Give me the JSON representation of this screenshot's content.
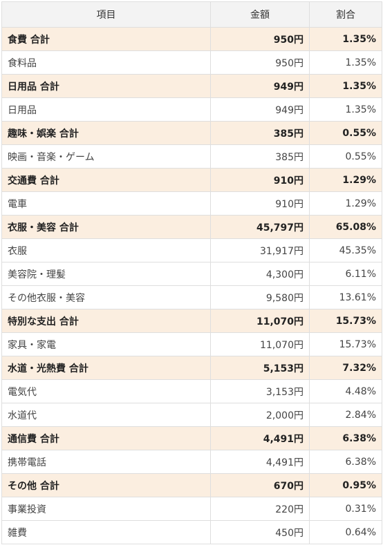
{
  "table": {
    "headers": {
      "item": "項目",
      "amount": "金額",
      "ratio": "割合"
    },
    "rows": [
      {
        "type": "total",
        "item": "食費 合計",
        "amount": "950円",
        "ratio": "1.35%"
      },
      {
        "type": "item",
        "item": "食料品",
        "amount": "950円",
        "ratio": "1.35%"
      },
      {
        "type": "total",
        "item": "日用品 合計",
        "amount": "949円",
        "ratio": "1.35%"
      },
      {
        "type": "item",
        "item": "日用品",
        "amount": "949円",
        "ratio": "1.35%"
      },
      {
        "type": "total",
        "item": "趣味・娯楽 合計",
        "amount": "385円",
        "ratio": "0.55%"
      },
      {
        "type": "item",
        "item": "映画・音楽・ゲーム",
        "amount": "385円",
        "ratio": "0.55%"
      },
      {
        "type": "total",
        "item": "交通費 合計",
        "amount": "910円",
        "ratio": "1.29%"
      },
      {
        "type": "item",
        "item": "電車",
        "amount": "910円",
        "ratio": "1.29%"
      },
      {
        "type": "total",
        "item": "衣服・美容 合計",
        "amount": "45,797円",
        "ratio": "65.08%"
      },
      {
        "type": "item",
        "item": "衣服",
        "amount": "31,917円",
        "ratio": "45.35%"
      },
      {
        "type": "item",
        "item": "美容院・理髪",
        "amount": "4,300円",
        "ratio": "6.11%"
      },
      {
        "type": "item",
        "item": "その他衣服・美容",
        "amount": "9,580円",
        "ratio": "13.61%"
      },
      {
        "type": "total",
        "item": "特別な支出 合計",
        "amount": "11,070円",
        "ratio": "15.73%"
      },
      {
        "type": "item",
        "item": "家具・家電",
        "amount": "11,070円",
        "ratio": "15.73%"
      },
      {
        "type": "total",
        "item": "水道・光熱費 合計",
        "amount": "5,153円",
        "ratio": "7.32%"
      },
      {
        "type": "item",
        "item": "電気代",
        "amount": "3,153円",
        "ratio": "4.48%"
      },
      {
        "type": "item",
        "item": "水道代",
        "amount": "2,000円",
        "ratio": "2.84%"
      },
      {
        "type": "total",
        "item": "通信費 合計",
        "amount": "4,491円",
        "ratio": "6.38%"
      },
      {
        "type": "item",
        "item": "携帯電話",
        "amount": "4,491円",
        "ratio": "6.38%"
      },
      {
        "type": "total",
        "item": "その他 合計",
        "amount": "670円",
        "ratio": "0.95%"
      },
      {
        "type": "item",
        "item": "事業投資",
        "amount": "220円",
        "ratio": "0.31%"
      },
      {
        "type": "item",
        "item": "雑費",
        "amount": "450円",
        "ratio": "0.64%"
      }
    ]
  }
}
